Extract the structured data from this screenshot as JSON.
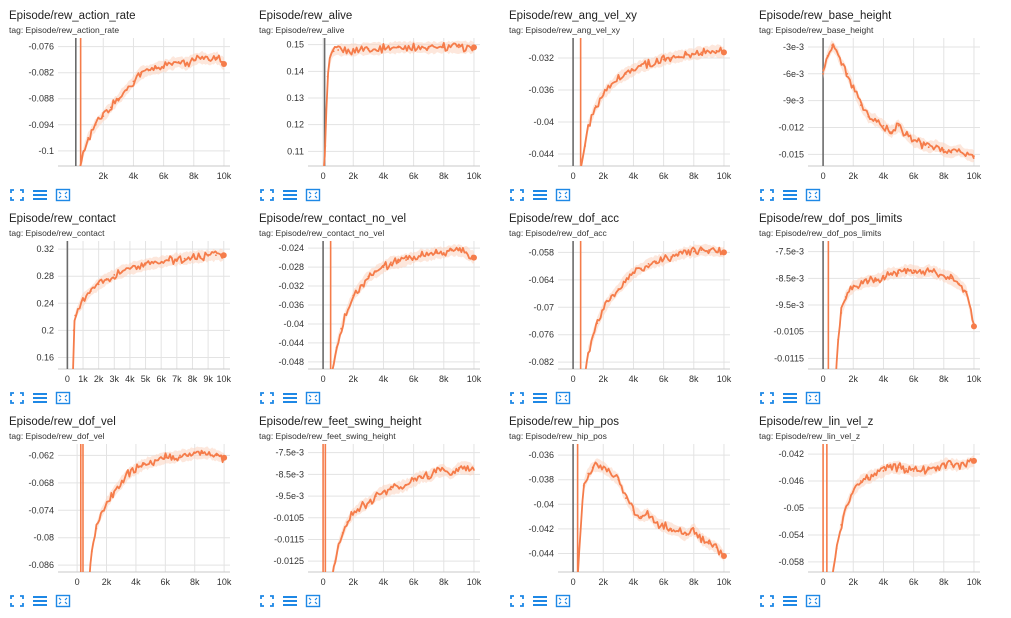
{
  "colors": {
    "series": "#f57c4a",
    "smoothed_band": "#fcd3c0",
    "marker_line": "#6b6b6b",
    "grid": "#e3e3e3",
    "icon": "#1e88e5"
  },
  "toolbar_icons": [
    "expand-icon",
    "data-table-icon",
    "fit-domain-icon"
  ],
  "chart_data": [
    {
      "type": "line",
      "title": "Episode/rew_action_rate",
      "tag": "tag: Episode/rew_action_rate",
      "xlim": [
        -1000,
        10400
      ],
      "ylim": [
        -0.1035,
        -0.074
      ],
      "xticks": [
        2000,
        4000,
        6000,
        8000,
        10000
      ],
      "xtick_labels": [
        "2k",
        "4k",
        "6k",
        "8k",
        "10k"
      ],
      "yticks": [
        -0.076,
        -0.082,
        -0.088,
        -0.094,
        -0.1
      ],
      "ytick_labels": [
        "-0.076",
        "-0.082",
        "-0.088",
        "-0.094",
        "-0.1"
      ],
      "vlines": [
        {
          "x": 180,
          "color": "#6b6b6b"
        },
        {
          "x": 500,
          "color": "#f57c4a"
        }
      ],
      "x": [
        0,
        500,
        700,
        1000,
        1500,
        2000,
        2500,
        3000,
        3500,
        4000,
        4500,
        5000,
        5500,
        6000,
        6500,
        7000,
        7500,
        8000,
        8500,
        9000,
        9500,
        10000
      ],
      "y": [
        -0.108,
        -0.104,
        -0.1,
        -0.097,
        -0.094,
        -0.092,
        -0.09,
        -0.088,
        -0.086,
        -0.084,
        -0.082,
        -0.0815,
        -0.081,
        -0.0805,
        -0.08,
        -0.0795,
        -0.08,
        -0.079,
        -0.0785,
        -0.079,
        -0.0785,
        -0.08
      ],
      "end_marker": true
    },
    {
      "type": "line",
      "title": "Episode/rew_alive",
      "tag": "tag: Episode/rew_alive",
      "xlim": [
        -1000,
        10400
      ],
      "ylim": [
        0.1045,
        0.1525
      ],
      "xticks": [
        0,
        2000,
        4000,
        6000,
        8000,
        10000
      ],
      "xtick_labels": [
        "0",
        "2k",
        "4k",
        "6k",
        "8k",
        "10k"
      ],
      "yticks": [
        0.15,
        0.14,
        0.13,
        0.12,
        0.11
      ],
      "ytick_labels": [
        "0.15",
        "0.14",
        "0.13",
        "0.12",
        "0.11"
      ],
      "vlines": [
        {
          "x": 100,
          "color": "#6b6b6b"
        }
      ],
      "x": [
        0,
        150,
        300,
        500,
        700,
        1000,
        2000,
        3000,
        4000,
        5000,
        6000,
        7000,
        8000,
        9000,
        10000
      ],
      "y": [
        0.1,
        0.112,
        0.138,
        0.146,
        0.1475,
        0.148,
        0.148,
        0.1485,
        0.1485,
        0.149,
        0.149,
        0.1488,
        0.149,
        0.149,
        0.149
      ],
      "end_marker": true
    },
    {
      "type": "line",
      "title": "Episode/rew_ang_vel_xy",
      "tag": "tag: Episode/rew_ang_vel_xy",
      "xlim": [
        -1000,
        10400
      ],
      "ylim": [
        -0.0455,
        -0.0295
      ],
      "xticks": [
        0,
        2000,
        4000,
        6000,
        8000,
        10000
      ],
      "xtick_labels": [
        "0",
        "2k",
        "4k",
        "6k",
        "8k",
        "10k"
      ],
      "yticks": [
        -0.032,
        -0.036,
        -0.04,
        -0.044
      ],
      "ytick_labels": [
        "-0.032",
        "-0.036",
        "-0.04",
        "-0.044"
      ],
      "vlines": [
        {
          "x": 0,
          "color": "#6b6b6b"
        },
        {
          "x": 500,
          "color": "#f57c4a"
        }
      ],
      "x": [
        0,
        500,
        800,
        1000,
        1500,
        2000,
        2500,
        3000,
        3500,
        4000,
        4500,
        5000,
        5500,
        6000,
        6500,
        7000,
        7500,
        8000,
        8500,
        9000,
        9500,
        10000
      ],
      "y": [
        -0.048,
        -0.046,
        -0.043,
        -0.0405,
        -0.038,
        -0.0365,
        -0.0355,
        -0.0345,
        -0.034,
        -0.0335,
        -0.033,
        -0.0328,
        -0.0325,
        -0.0322,
        -0.032,
        -0.0318,
        -0.0316,
        -0.0315,
        -0.0313,
        -0.0312,
        -0.0311,
        -0.0313
      ],
      "end_marker": true
    },
    {
      "type": "line",
      "title": "Episode/rew_base_height",
      "tag": "tag: Episode/rew_base_height",
      "xlim": [
        -1000,
        10400
      ],
      "ylim": [
        -0.0163,
        -0.002
      ],
      "xticks": [
        0,
        2000,
        4000,
        6000,
        8000,
        10000
      ],
      "xtick_labels": [
        "0",
        "2k",
        "4k",
        "6k",
        "8k",
        "10k"
      ],
      "yticks": [
        -0.003,
        -0.006,
        -0.009,
        -0.012,
        -0.015
      ],
      "ytick_labels": [
        "-3e-3",
        "-6e-3",
        "-9e-3",
        "-0.012",
        "-0.015"
      ],
      "vlines": [
        {
          "x": 0,
          "color": "#6b6b6b"
        }
      ],
      "x": [
        0,
        300,
        600,
        900,
        1200,
        1600,
        2000,
        2500,
        3000,
        3500,
        4000,
        4500,
        5000,
        5500,
        6000,
        6500,
        7000,
        7500,
        8000,
        8500,
        9000,
        9500,
        10000
      ],
      "y": [
        -0.006,
        -0.004,
        -0.0028,
        -0.0035,
        -0.0048,
        -0.006,
        -0.0075,
        -0.0095,
        -0.0108,
        -0.0112,
        -0.0118,
        -0.0125,
        -0.0118,
        -0.0128,
        -0.0135,
        -0.0138,
        -0.0142,
        -0.014,
        -0.0145,
        -0.0148,
        -0.0145,
        -0.015,
        -0.0152
      ],
      "end_marker": false
    },
    {
      "type": "line",
      "title": "Episode/rew_contact",
      "tag": "tag: Episode/rew_contact",
      "xlim": [
        -600,
        10400
      ],
      "ylim": [
        0.143,
        0.332
      ],
      "xticks": [
        0,
        1000,
        2000,
        3000,
        4000,
        5000,
        6000,
        7000,
        8000,
        9000,
        10000
      ],
      "xtick_labels": [
        "0",
        "1k",
        "2k",
        "3k",
        "4k",
        "5k",
        "6k",
        "7k",
        "8k",
        "9k",
        "10k"
      ],
      "yticks": [
        0.32,
        0.28,
        0.24,
        0.2,
        0.16
      ],
      "ytick_labels": [
        "0.32",
        "0.28",
        "0.24",
        "0.2",
        "0.16"
      ],
      "vlines": [
        {
          "x": 0,
          "color": "#6b6b6b"
        }
      ],
      "x": [
        350,
        400,
        500,
        700,
        1000,
        1500,
        2000,
        2500,
        3000,
        3500,
        4000,
        4500,
        5000,
        5500,
        6000,
        6500,
        7000,
        7500,
        8000,
        8500,
        9000,
        9500,
        10000
      ],
      "y": [
        0.14,
        0.2,
        0.222,
        0.232,
        0.245,
        0.258,
        0.268,
        0.276,
        0.282,
        0.287,
        0.291,
        0.294,
        0.297,
        0.299,
        0.301,
        0.303,
        0.305,
        0.306,
        0.308,
        0.309,
        0.31,
        0.311,
        0.311
      ],
      "end_marker": true
    },
    {
      "type": "line",
      "title": "Episode/rew_contact_no_vel",
      "tag": "tag: Episode/rew_contact_no_vel",
      "xlim": [
        -1000,
        10400
      ],
      "ylim": [
        -0.0495,
        -0.0225
      ],
      "xticks": [
        0,
        2000,
        4000,
        6000,
        8000,
        10000
      ],
      "xtick_labels": [
        "0",
        "2k",
        "4k",
        "6k",
        "8k",
        "10k"
      ],
      "yticks": [
        -0.024,
        -0.028,
        -0.032,
        -0.036,
        -0.04,
        -0.044,
        -0.048
      ],
      "ytick_labels": [
        "-0.024",
        "-0.028",
        "-0.032",
        "-0.036",
        "-0.04",
        "-0.044",
        "-0.048"
      ],
      "vlines": [
        {
          "x": 0,
          "color": "#6b6b6b"
        },
        {
          "x": 500,
          "color": "#f57c4a"
        }
      ],
      "x": [
        600,
        900,
        1200,
        1500,
        2000,
        2500,
        3000,
        3500,
        4000,
        4500,
        5000,
        5500,
        6000,
        6500,
        7000,
        7500,
        8000,
        8500,
        9000,
        9500,
        10000
      ],
      "y": [
        -0.05,
        -0.045,
        -0.041,
        -0.038,
        -0.034,
        -0.032,
        -0.03,
        -0.029,
        -0.028,
        -0.027,
        -0.027,
        -0.0265,
        -0.026,
        -0.0255,
        -0.0255,
        -0.025,
        -0.025,
        -0.0245,
        -0.0245,
        -0.025,
        -0.026
      ],
      "end_marker": true
    },
    {
      "type": "line",
      "title": "Episode/rew_dof_acc",
      "tag": "tag: Episode/rew_dof_acc",
      "xlim": [
        -1000,
        10400
      ],
      "ylim": [
        -0.0835,
        -0.0555
      ],
      "xticks": [
        0,
        2000,
        4000,
        6000,
        8000,
        10000
      ],
      "xtick_labels": [
        "0",
        "2k",
        "4k",
        "6k",
        "8k",
        "10k"
      ],
      "yticks": [
        -0.058,
        -0.064,
        -0.07,
        -0.076,
        -0.082
      ],
      "ytick_labels": [
        "-0.058",
        "-0.064",
        "-0.07",
        "-0.076",
        "-0.082"
      ],
      "vlines": [
        {
          "x": 0,
          "color": "#6b6b6b"
        },
        {
          "x": 500,
          "color": "#f57c4a"
        }
      ],
      "x": [
        800,
        1000,
        1300,
        1600,
        2000,
        2500,
        3000,
        3500,
        4000,
        4500,
        5000,
        5500,
        6000,
        6500,
        7000,
        7500,
        8000,
        8500,
        9000,
        9500,
        10000
      ],
      "y": [
        -0.085,
        -0.08,
        -0.0765,
        -0.0735,
        -0.0705,
        -0.068,
        -0.066,
        -0.064,
        -0.0625,
        -0.0615,
        -0.0605,
        -0.06,
        -0.0595,
        -0.059,
        -0.0585,
        -0.058,
        -0.0578,
        -0.0575,
        -0.0575,
        -0.0578,
        -0.058
      ],
      "end_marker": true
    },
    {
      "type": "line",
      "title": "Episode/rew_dof_pos_limits",
      "tag": "tag: Episode/rew_dof_pos_limits",
      "xlim": [
        -1000,
        10400
      ],
      "ylim": [
        -0.0119,
        -0.0071
      ],
      "xticks": [
        0,
        2000,
        4000,
        6000,
        8000,
        10000
      ],
      "xtick_labels": [
        "0",
        "2k",
        "4k",
        "6k",
        "8k",
        "10k"
      ],
      "yticks": [
        -0.0075,
        -0.0085,
        -0.0095,
        -0.0105,
        -0.0115
      ],
      "ytick_labels": [
        "-7.5e-3",
        "-8.5e-3",
        "-9.5e-3",
        "-0.0105",
        "-0.0115"
      ],
      "vlines": [
        {
          "x": 0,
          "color": "#6b6b6b"
        },
        {
          "x": 350,
          "color": "#f57c4a"
        }
      ],
      "x": [
        800,
        1000,
        1200,
        1500,
        2000,
        2500,
        3000,
        3500,
        4000,
        4500,
        5000,
        5500,
        6000,
        6500,
        7000,
        7500,
        8000,
        8500,
        9000,
        9500,
        10000
      ],
      "y": [
        -0.0125,
        -0.0108,
        -0.0098,
        -0.0092,
        -0.0088,
        -0.0087,
        -0.0086,
        -0.0086,
        -0.0084,
        -0.0083,
        -0.0083,
        -0.0082,
        -0.0082,
        -0.0083,
        -0.0082,
        -0.0083,
        -0.0084,
        -0.0085,
        -0.0087,
        -0.009,
        -0.0103
      ],
      "end_marker": true
    },
    {
      "type": "line",
      "title": "Episode/rew_dof_vel",
      "tag": "tag: Episode/rew_dof_vel",
      "xlim": [
        -1300,
        10400
      ],
      "ylim": [
        -0.0875,
        -0.0595
      ],
      "xticks": [
        0,
        2000,
        4000,
        6000,
        8000,
        10000
      ],
      "xtick_labels": [
        "0",
        "2k",
        "4k",
        "6k",
        "8k",
        "10k"
      ],
      "yticks": [
        -0.062,
        -0.068,
        -0.074,
        -0.08,
        -0.086
      ],
      "ytick_labels": [
        "-0.062",
        "-0.068",
        "-0.074",
        "-0.08",
        "-0.086"
      ],
      "vlines": [
        {
          "x": 250,
          "color": "#f57c4a"
        },
        {
          "x": 400,
          "color": "#f57c4a"
        }
      ],
      "x": [
        800,
        1000,
        1300,
        1600,
        2000,
        2500,
        3000,
        3500,
        4000,
        4500,
        5000,
        5500,
        6000,
        6500,
        7000,
        7500,
        8000,
        8500,
        9000,
        9500,
        10000
      ],
      "y": [
        -0.09,
        -0.083,
        -0.078,
        -0.075,
        -0.0725,
        -0.07,
        -0.068,
        -0.066,
        -0.065,
        -0.064,
        -0.0635,
        -0.063,
        -0.0625,
        -0.0625,
        -0.062,
        -0.062,
        -0.0615,
        -0.0615,
        -0.0615,
        -0.062,
        -0.0625
      ],
      "end_marker": true
    },
    {
      "type": "line",
      "title": "Episode/rew_feet_swing_height",
      "tag": "tag: Episode/rew_feet_swing_height",
      "xlim": [
        -1000,
        10400
      ],
      "ylim": [
        -0.013,
        -0.0071
      ],
      "xticks": [
        0,
        2000,
        4000,
        6000,
        8000,
        10000
      ],
      "xtick_labels": [
        "0",
        "2k",
        "4k",
        "6k",
        "8k",
        "10k"
      ],
      "yticks": [
        -0.0075,
        -0.0085,
        -0.0095,
        -0.0105,
        -0.0115,
        -0.0125
      ],
      "ytick_labels": [
        "-7.5e-3",
        "-8.5e-3",
        "-9.5e-3",
        "-0.0105",
        "-0.0115",
        "-0.0125"
      ],
      "vlines": [
        {
          "x": 0,
          "color": "#f57c4a"
        },
        {
          "x": 150,
          "color": "#f57c4a"
        }
      ],
      "x": [
        500,
        800,
        1000,
        1300,
        1600,
        2000,
        2500,
        3000,
        3500,
        4000,
        4500,
        5000,
        5500,
        6000,
        6500,
        7000,
        7500,
        8000,
        8500,
        9000,
        9500,
        10000
      ],
      "y": [
        -0.0135,
        -0.0125,
        -0.0118,
        -0.0112,
        -0.0107,
        -0.0103,
        -0.01,
        -0.0098,
        -0.0095,
        -0.0093,
        -0.0092,
        -0.0091,
        -0.009,
        -0.0088,
        -0.0086,
        -0.0086,
        -0.0084,
        -0.0083,
        -0.0085,
        -0.0082,
        -0.0082,
        -0.0083
      ],
      "end_marker": false
    },
    {
      "type": "line",
      "title": "Episode/rew_hip_pos",
      "tag": "tag: Episode/rew_hip_pos",
      "xlim": [
        -1000,
        10400
      ],
      "ylim": [
        -0.0455,
        -0.0351
      ],
      "xticks": [
        0,
        2000,
        4000,
        6000,
        8000,
        10000
      ],
      "xtick_labels": [
        "0",
        "2k",
        "4k",
        "6k",
        "8k",
        "10k"
      ],
      "yticks": [
        -0.036,
        -0.038,
        -0.04,
        -0.042,
        -0.044
      ],
      "ytick_labels": [
        "-0.036",
        "-0.038",
        "-0.04",
        "-0.042",
        "-0.044"
      ],
      "vlines": [
        {
          "x": 0,
          "color": "#6b6b6b"
        },
        {
          "x": 300,
          "color": "#f57c4a"
        }
      ],
      "x": [
        300,
        500,
        700,
        1000,
        1300,
        1600,
        2000,
        2500,
        3000,
        3500,
        4000,
        4500,
        5000,
        5500,
        6000,
        6500,
        7000,
        7500,
        8000,
        8500,
        9000,
        9500,
        10000
      ],
      "y": [
        -0.046,
        -0.042,
        -0.0385,
        -0.0375,
        -0.037,
        -0.0368,
        -0.037,
        -0.0375,
        -0.038,
        -0.0395,
        -0.0405,
        -0.041,
        -0.0408,
        -0.0415,
        -0.0418,
        -0.042,
        -0.0422,
        -0.0425,
        -0.042,
        -0.0428,
        -0.0432,
        -0.0435,
        -0.0442
      ],
      "end_marker": true
    },
    {
      "type": "line",
      "title": "Episode/rew_lin_vel_z",
      "tag": "tag: Episode/rew_lin_vel_z",
      "xlim": [
        -1000,
        10400
      ],
      "ylim": [
        -0.0595,
        -0.0405
      ],
      "xticks": [
        0,
        2000,
        4000,
        6000,
        8000,
        10000
      ],
      "xtick_labels": [
        "0",
        "2k",
        "4k",
        "6k",
        "8k",
        "10k"
      ],
      "yticks": [
        -0.042,
        -0.046,
        -0.05,
        -0.054,
        -0.058
      ],
      "ytick_labels": [
        "-0.042",
        "-0.046",
        "-0.05",
        "-0.054",
        "-0.058"
      ],
      "vlines": [
        {
          "x": 0,
          "color": "#f57c4a"
        },
        {
          "x": 250,
          "color": "#f57c4a"
        }
      ],
      "x": [
        600,
        900,
        1200,
        1500,
        2000,
        2500,
        3000,
        3500,
        4000,
        4500,
        5000,
        5500,
        6000,
        6500,
        7000,
        7500,
        8000,
        8500,
        9000,
        9500,
        10000
      ],
      "y": [
        -0.06,
        -0.056,
        -0.0525,
        -0.05,
        -0.0475,
        -0.046,
        -0.0455,
        -0.045,
        -0.0445,
        -0.044,
        -0.044,
        -0.0442,
        -0.0445,
        -0.0445,
        -0.0443,
        -0.044,
        -0.0435,
        -0.0435,
        -0.0437,
        -0.0435,
        -0.043
      ],
      "end_marker": true
    }
  ]
}
